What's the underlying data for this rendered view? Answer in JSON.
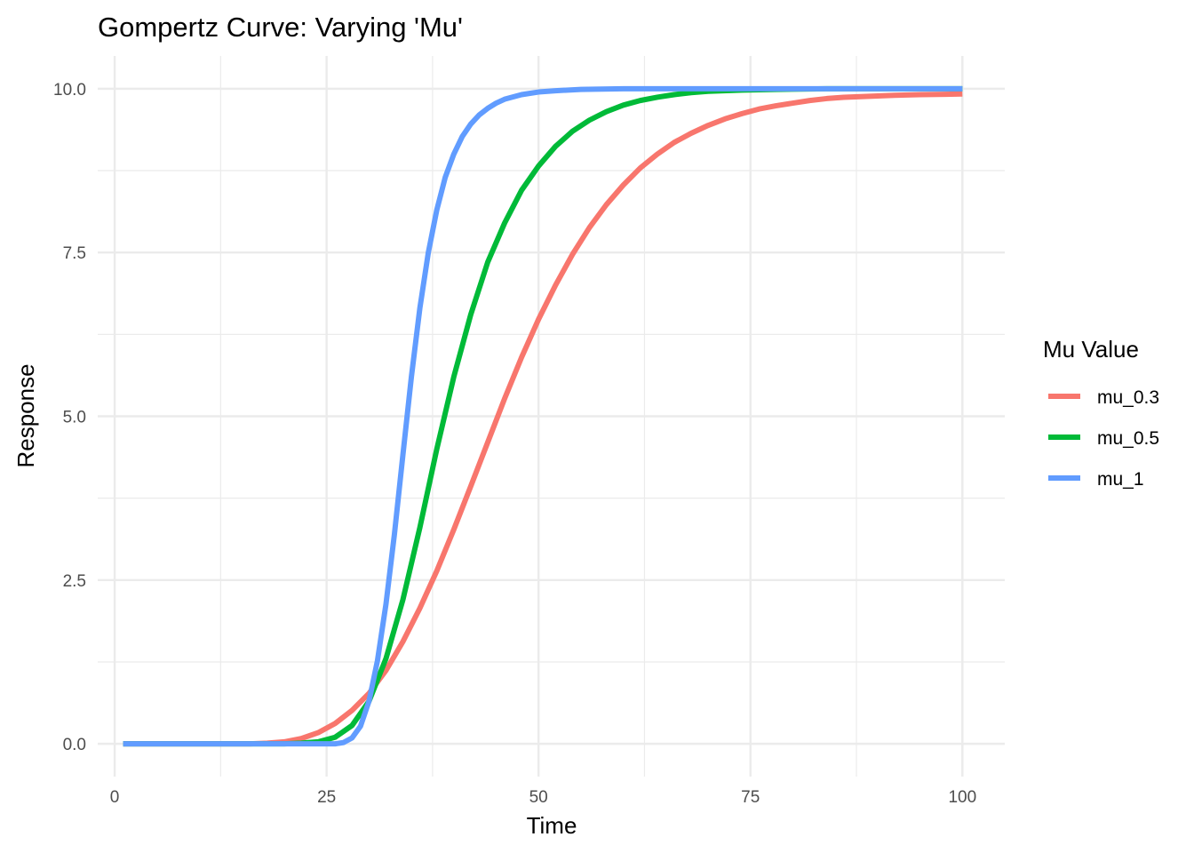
{
  "chart_data": {
    "type": "line",
    "title": "Gompertz Curve: Varying 'Mu'",
    "xlabel": "Time",
    "ylabel": "Response",
    "xlim": [
      -2,
      105
    ],
    "ylim": [
      -0.5,
      10.5
    ],
    "x_ticks": [
      0,
      25,
      50,
      75,
      100
    ],
    "x_tick_labels": [
      "0",
      "25",
      "50",
      "75",
      "100"
    ],
    "y_ticks": [
      0,
      2.5,
      5,
      7.5,
      10
    ],
    "y_tick_labels": [
      "0.0",
      "2.5",
      "5.0",
      "7.5",
      "10.0"
    ],
    "grid": true,
    "legend": {
      "title": "Mu Value",
      "position": "right"
    },
    "series": [
      {
        "name": "mu_0.3",
        "color": "#F8766D",
        "points": [
          [
            1,
            0
          ],
          [
            10,
            0
          ],
          [
            16,
            0
          ],
          [
            18,
            0.01
          ],
          [
            20,
            0.03
          ],
          [
            22,
            0.08
          ],
          [
            24,
            0.17
          ],
          [
            26,
            0.31
          ],
          [
            28,
            0.51
          ],
          [
            30,
            0.77
          ],
          [
            32,
            1.12
          ],
          [
            34,
            1.56
          ],
          [
            36,
            2.07
          ],
          [
            38,
            2.64
          ],
          [
            40,
            3.27
          ],
          [
            42,
            3.93
          ],
          [
            44,
            4.6
          ],
          [
            46,
            5.27
          ],
          [
            48,
            5.9
          ],
          [
            50,
            6.48
          ],
          [
            52,
            7.0
          ],
          [
            54,
            7.47
          ],
          [
            56,
            7.88
          ],
          [
            58,
            8.23
          ],
          [
            60,
            8.53
          ],
          [
            62,
            8.79
          ],
          [
            64,
            9.0
          ],
          [
            66,
            9.18
          ],
          [
            68,
            9.32
          ],
          [
            70,
            9.44
          ],
          [
            72,
            9.54
          ],
          [
            74,
            9.62
          ],
          [
            76,
            9.69
          ],
          [
            78,
            9.74
          ],
          [
            80,
            9.78
          ],
          [
            82,
            9.82
          ],
          [
            84,
            9.85
          ],
          [
            86,
            9.87
          ],
          [
            88,
            9.88
          ],
          [
            90,
            9.89
          ],
          [
            92,
            9.9
          ],
          [
            95,
            9.91
          ],
          [
            98,
            9.915
          ],
          [
            100,
            9.92
          ]
        ]
      },
      {
        "name": "mu_0.5",
        "color": "#00BA38",
        "points": [
          [
            1,
            0
          ],
          [
            15,
            0
          ],
          [
            20,
            0
          ],
          [
            22,
            0.01
          ],
          [
            24,
            0.03
          ],
          [
            26,
            0.1
          ],
          [
            28,
            0.28
          ],
          [
            30,
            0.65
          ],
          [
            32,
            1.3
          ],
          [
            34,
            2.2
          ],
          [
            36,
            3.3
          ],
          [
            38,
            4.5
          ],
          [
            40,
            5.6
          ],
          [
            42,
            6.55
          ],
          [
            44,
            7.35
          ],
          [
            46,
            7.95
          ],
          [
            48,
            8.45
          ],
          [
            50,
            8.82
          ],
          [
            52,
            9.12
          ],
          [
            54,
            9.35
          ],
          [
            56,
            9.52
          ],
          [
            58,
            9.65
          ],
          [
            60,
            9.75
          ],
          [
            62,
            9.82
          ],
          [
            64,
            9.87
          ],
          [
            66,
            9.91
          ],
          [
            68,
            9.94
          ],
          [
            70,
            9.96
          ],
          [
            74,
            9.98
          ],
          [
            78,
            9.99
          ],
          [
            84,
            10.0
          ],
          [
            100,
            10.0
          ]
        ]
      },
      {
        "name": "mu_1",
        "color": "#619CFF",
        "points": [
          [
            1,
            0
          ],
          [
            20,
            0
          ],
          [
            26,
            0
          ],
          [
            27,
            0.02
          ],
          [
            28,
            0.09
          ],
          [
            29,
            0.27
          ],
          [
            30,
            0.65
          ],
          [
            31,
            1.27
          ],
          [
            32,
            2.13
          ],
          [
            33,
            3.2
          ],
          [
            34,
            4.41
          ],
          [
            35,
            5.6
          ],
          [
            36,
            6.65
          ],
          [
            37,
            7.5
          ],
          [
            38,
            8.15
          ],
          [
            39,
            8.65
          ],
          [
            40,
            9.0
          ],
          [
            41,
            9.27
          ],
          [
            42,
            9.46
          ],
          [
            43,
            9.6
          ],
          [
            44,
            9.7
          ],
          [
            45,
            9.78
          ],
          [
            46,
            9.84
          ],
          [
            48,
            9.91
          ],
          [
            50,
            9.95
          ],
          [
            52,
            9.97
          ],
          [
            55,
            9.99
          ],
          [
            60,
            10.0
          ],
          [
            100,
            10.0
          ]
        ]
      }
    ]
  }
}
